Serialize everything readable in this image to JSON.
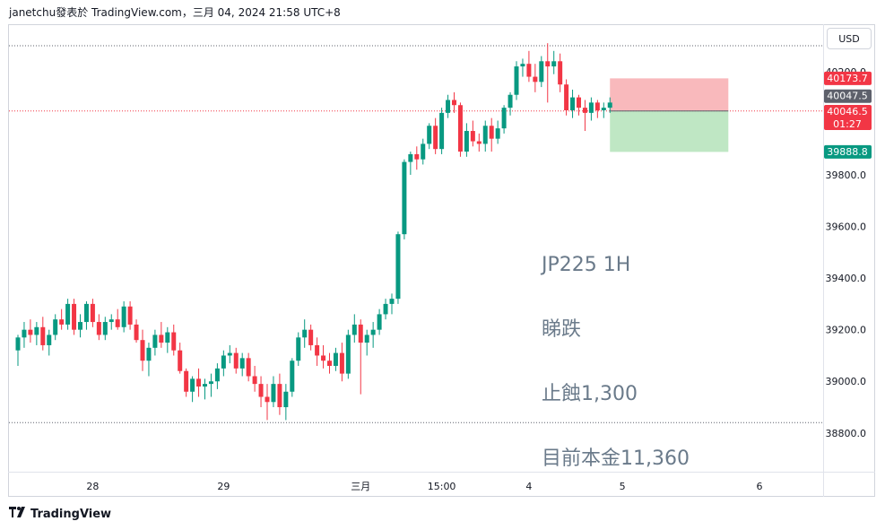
{
  "header": {
    "text": "janetchu發表於 TradingView.com，三月 04, 2024 21:58 UTC+8"
  },
  "currency_button": "USD",
  "footer": {
    "brand": "TradingView",
    "logo": "tradingview-logo-icon"
  },
  "annotation": {
    "lines": [
      "JP225 1H",
      "睇跌",
      "止蝕1,300",
      "目前本金11,360"
    ]
  },
  "colors": {
    "up": "#089981",
    "down": "#f23645",
    "stop_zone": "#f7a1a6",
    "target_zone": "#a9dfb0",
    "dotted_line": "#5d606b",
    "price_line": "#f23645"
  },
  "price_labels": [
    {
      "text": "40173.7",
      "bg": "#f23645",
      "fg": "#ffffff",
      "value": 40173.7
    },
    {
      "text": "40047.5",
      "bg": "#5d606b",
      "fg": "#ffffff",
      "value": 40047.5
    },
    {
      "text": "40046.5",
      "bg": "#f23645",
      "fg": "#ffffff",
      "value": 40046.5,
      "sub": "01:27"
    },
    {
      "text": "39888.8",
      "bg": "#089981",
      "fg": "#ffffff",
      "value": 39888.8
    }
  ],
  "chart_data": {
    "type": "candlestick",
    "symbol": "JP225",
    "timeframe": "1H",
    "ylim": [
      38650,
      40380
    ],
    "y_ticks": [
      {
        "value": 40200,
        "label": "40200.0"
      },
      {
        "value": 39800,
        "label": "39800.0"
      },
      {
        "value": 39600,
        "label": "39600.0"
      },
      {
        "value": 39400,
        "label": "39400.0"
      },
      {
        "value": 39200,
        "label": "39200.0"
      },
      {
        "value": 39000,
        "label": "39000.0"
      },
      {
        "value": 38800,
        "label": "38800.0"
      }
    ],
    "x_ticks": [
      {
        "index": 12,
        "label": "28"
      },
      {
        "index": 33,
        "label": "29"
      },
      {
        "index": 55,
        "label": "三月"
      },
      {
        "index": 68,
        "label": "15:00"
      },
      {
        "index": 82,
        "label": "4"
      },
      {
        "index": 97,
        "label": "5"
      },
      {
        "index": 119,
        "label": "6"
      }
    ],
    "dotted_levels": [
      40300,
      40047.5,
      38840
    ],
    "position": {
      "entry": 40047.5,
      "stop": 40173.7,
      "target": 39888.8,
      "start_index": 95,
      "end_index": 114
    },
    "candles": [
      [
        39120,
        39180,
        39060,
        39170
      ],
      [
        39170,
        39230,
        39130,
        39200
      ],
      [
        39200,
        39240,
        39150,
        39180
      ],
      [
        39180,
        39230,
        39140,
        39210
      ],
      [
        39210,
        39250,
        39120,
        39140
      ],
      [
        39140,
        39200,
        39100,
        39180
      ],
      [
        39180,
        39260,
        39160,
        39240
      ],
      [
        39240,
        39280,
        39200,
        39220
      ],
      [
        39220,
        39320,
        39200,
        39300
      ],
      [
        39300,
        39320,
        39180,
        39200
      ],
      [
        39200,
        39260,
        39170,
        39230
      ],
      [
        39230,
        39310,
        39200,
        39300
      ],
      [
        39300,
        39320,
        39210,
        39230
      ],
      [
        39230,
        39260,
        39160,
        39180
      ],
      [
        39180,
        39250,
        39160,
        39230
      ],
      [
        39230,
        39260,
        39200,
        39240
      ],
      [
        39240,
        39280,
        39200,
        39210
      ],
      [
        39210,
        39310,
        39190,
        39290
      ],
      [
        39290,
        39310,
        39200,
        39220
      ],
      [
        39220,
        39240,
        39150,
        39160
      ],
      [
        39160,
        39200,
        39040,
        39080
      ],
      [
        39080,
        39150,
        39020,
        39130
      ],
      [
        39130,
        39200,
        39100,
        39180
      ],
      [
        39180,
        39230,
        39130,
        39150
      ],
      [
        39150,
        39210,
        39110,
        39190
      ],
      [
        39190,
        39220,
        39100,
        39120
      ],
      [
        39120,
        39150,
        39030,
        39040
      ],
      [
        39040,
        39050,
        38940,
        38960
      ],
      [
        38960,
        39020,
        38920,
        39010
      ],
      [
        39010,
        39050,
        38940,
        38980
      ],
      [
        38980,
        39010,
        38930,
        38990
      ],
      [
        38990,
        39030,
        38940,
        39000
      ],
      [
        39000,
        39070,
        38970,
        39050
      ],
      [
        39050,
        39120,
        39020,
        39100
      ],
      [
        39100,
        39140,
        39070,
        39110
      ],
      [
        39110,
        39130,
        39030,
        39050
      ],
      [
        39050,
        39110,
        39020,
        39090
      ],
      [
        39090,
        39110,
        39000,
        39020
      ],
      [
        39020,
        39060,
        38960,
        38990
      ],
      [
        38990,
        39020,
        38900,
        38940
      ],
      [
        38940,
        38990,
        38850,
        38920
      ],
      [
        38920,
        39020,
        38900,
        38990
      ],
      [
        38990,
        39030,
        38870,
        38900
      ],
      [
        38900,
        38990,
        38850,
        38960
      ],
      [
        38960,
        39090,
        38940,
        39080
      ],
      [
        39080,
        39190,
        39060,
        39170
      ],
      [
        39170,
        39240,
        39130,
        39200
      ],
      [
        39200,
        39220,
        39120,
        39140
      ],
      [
        39140,
        39170,
        39060,
        39100
      ],
      [
        39100,
        39140,
        39050,
        39080
      ],
      [
        39080,
        39110,
        39030,
        39060
      ],
      [
        39060,
        39130,
        39040,
        39110
      ],
      [
        39110,
        39150,
        39000,
        39030
      ],
      [
        39030,
        39200,
        39010,
        39180
      ],
      [
        39180,
        39260,
        39150,
        39220
      ],
      [
        39220,
        39240,
        38950,
        39150
      ],
      [
        39150,
        39200,
        39100,
        39180
      ],
      [
        39180,
        39230,
        39130,
        39200
      ],
      [
        39200,
        39280,
        39180,
        39260
      ],
      [
        39260,
        39320,
        39240,
        39300
      ],
      [
        39300,
        39340,
        39260,
        39320
      ],
      [
        39320,
        39580,
        39300,
        39570
      ],
      [
        39570,
        39860,
        39550,
        39850
      ],
      [
        39850,
        39890,
        39800,
        39880
      ],
      [
        39880,
        39910,
        39820,
        39860
      ],
      [
        39860,
        39940,
        39840,
        39920
      ],
      [
        39920,
        40000,
        39900,
        39990
      ],
      [
        39990,
        40020,
        39880,
        39900
      ],
      [
        39900,
        40060,
        39880,
        40040
      ],
      [
        40040,
        40110,
        40020,
        40090
      ],
      [
        40090,
        40120,
        40040,
        40070
      ],
      [
        40070,
        40080,
        39870,
        39890
      ],
      [
        39890,
        40000,
        39870,
        39970
      ],
      [
        39970,
        40010,
        39910,
        39930
      ],
      [
        39930,
        39960,
        39890,
        39920
      ],
      [
        39920,
        40010,
        39890,
        39990
      ],
      [
        39990,
        40020,
        39890,
        39940
      ],
      [
        39940,
        40010,
        39920,
        39980
      ],
      [
        39980,
        40070,
        39960,
        40060
      ],
      [
        40060,
        40120,
        40030,
        40110
      ],
      [
        40110,
        40240,
        40090,
        40220
      ],
      [
        40220,
        40250,
        40180,
        40230
      ],
      [
        40230,
        40280,
        40160,
        40180
      ],
      [
        40180,
        40230,
        40120,
        40160
      ],
      [
        40160,
        40260,
        40140,
        40240
      ],
      [
        40240,
        40310,
        40080,
        40220
      ],
      [
        40220,
        40280,
        40190,
        40240
      ],
      [
        40240,
        40270,
        40120,
        40150
      ],
      [
        40150,
        40170,
        40030,
        40050
      ],
      [
        40050,
        40130,
        40020,
        40100
      ],
      [
        40100,
        40110,
        40030,
        40060
      ],
      [
        40060,
        40090,
        39970,
        40040
      ],
      [
        40040,
        40100,
        40010,
        40080
      ],
      [
        40080,
        40090,
        40020,
        40050
      ],
      [
        40050,
        40080,
        40020,
        40060
      ],
      [
        40060,
        40100,
        40040,
        40080
      ]
    ]
  }
}
